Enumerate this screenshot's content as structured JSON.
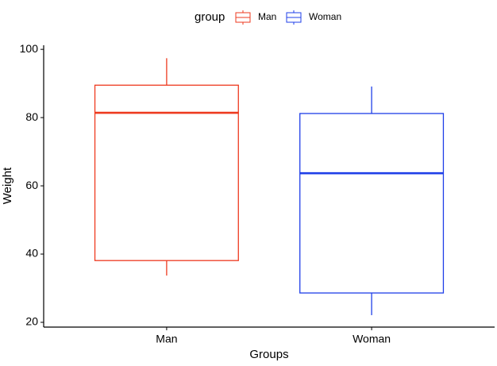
{
  "chart_data": {
    "type": "box",
    "xlabel": "Groups",
    "ylabel": "Weight",
    "legend_title": "group",
    "legend_position": "top",
    "categories": [
      "Man",
      "Woman"
    ],
    "series": [
      {
        "name": "Man",
        "color": "#ee3a1f",
        "min": 33.7,
        "q1": 38.1,
        "median": 81.4,
        "q3": 89.5,
        "max": 97.4
      },
      {
        "name": "Woman",
        "color": "#1f3fe8",
        "min": 22.1,
        "q1": 28.6,
        "median": 63.7,
        "q3": 81.2,
        "max": 89.1
      }
    ],
    "ylim": [
      18.6,
      101.2
    ],
    "yticks": [
      20,
      40,
      60,
      80,
      100
    ],
    "grid": false
  }
}
